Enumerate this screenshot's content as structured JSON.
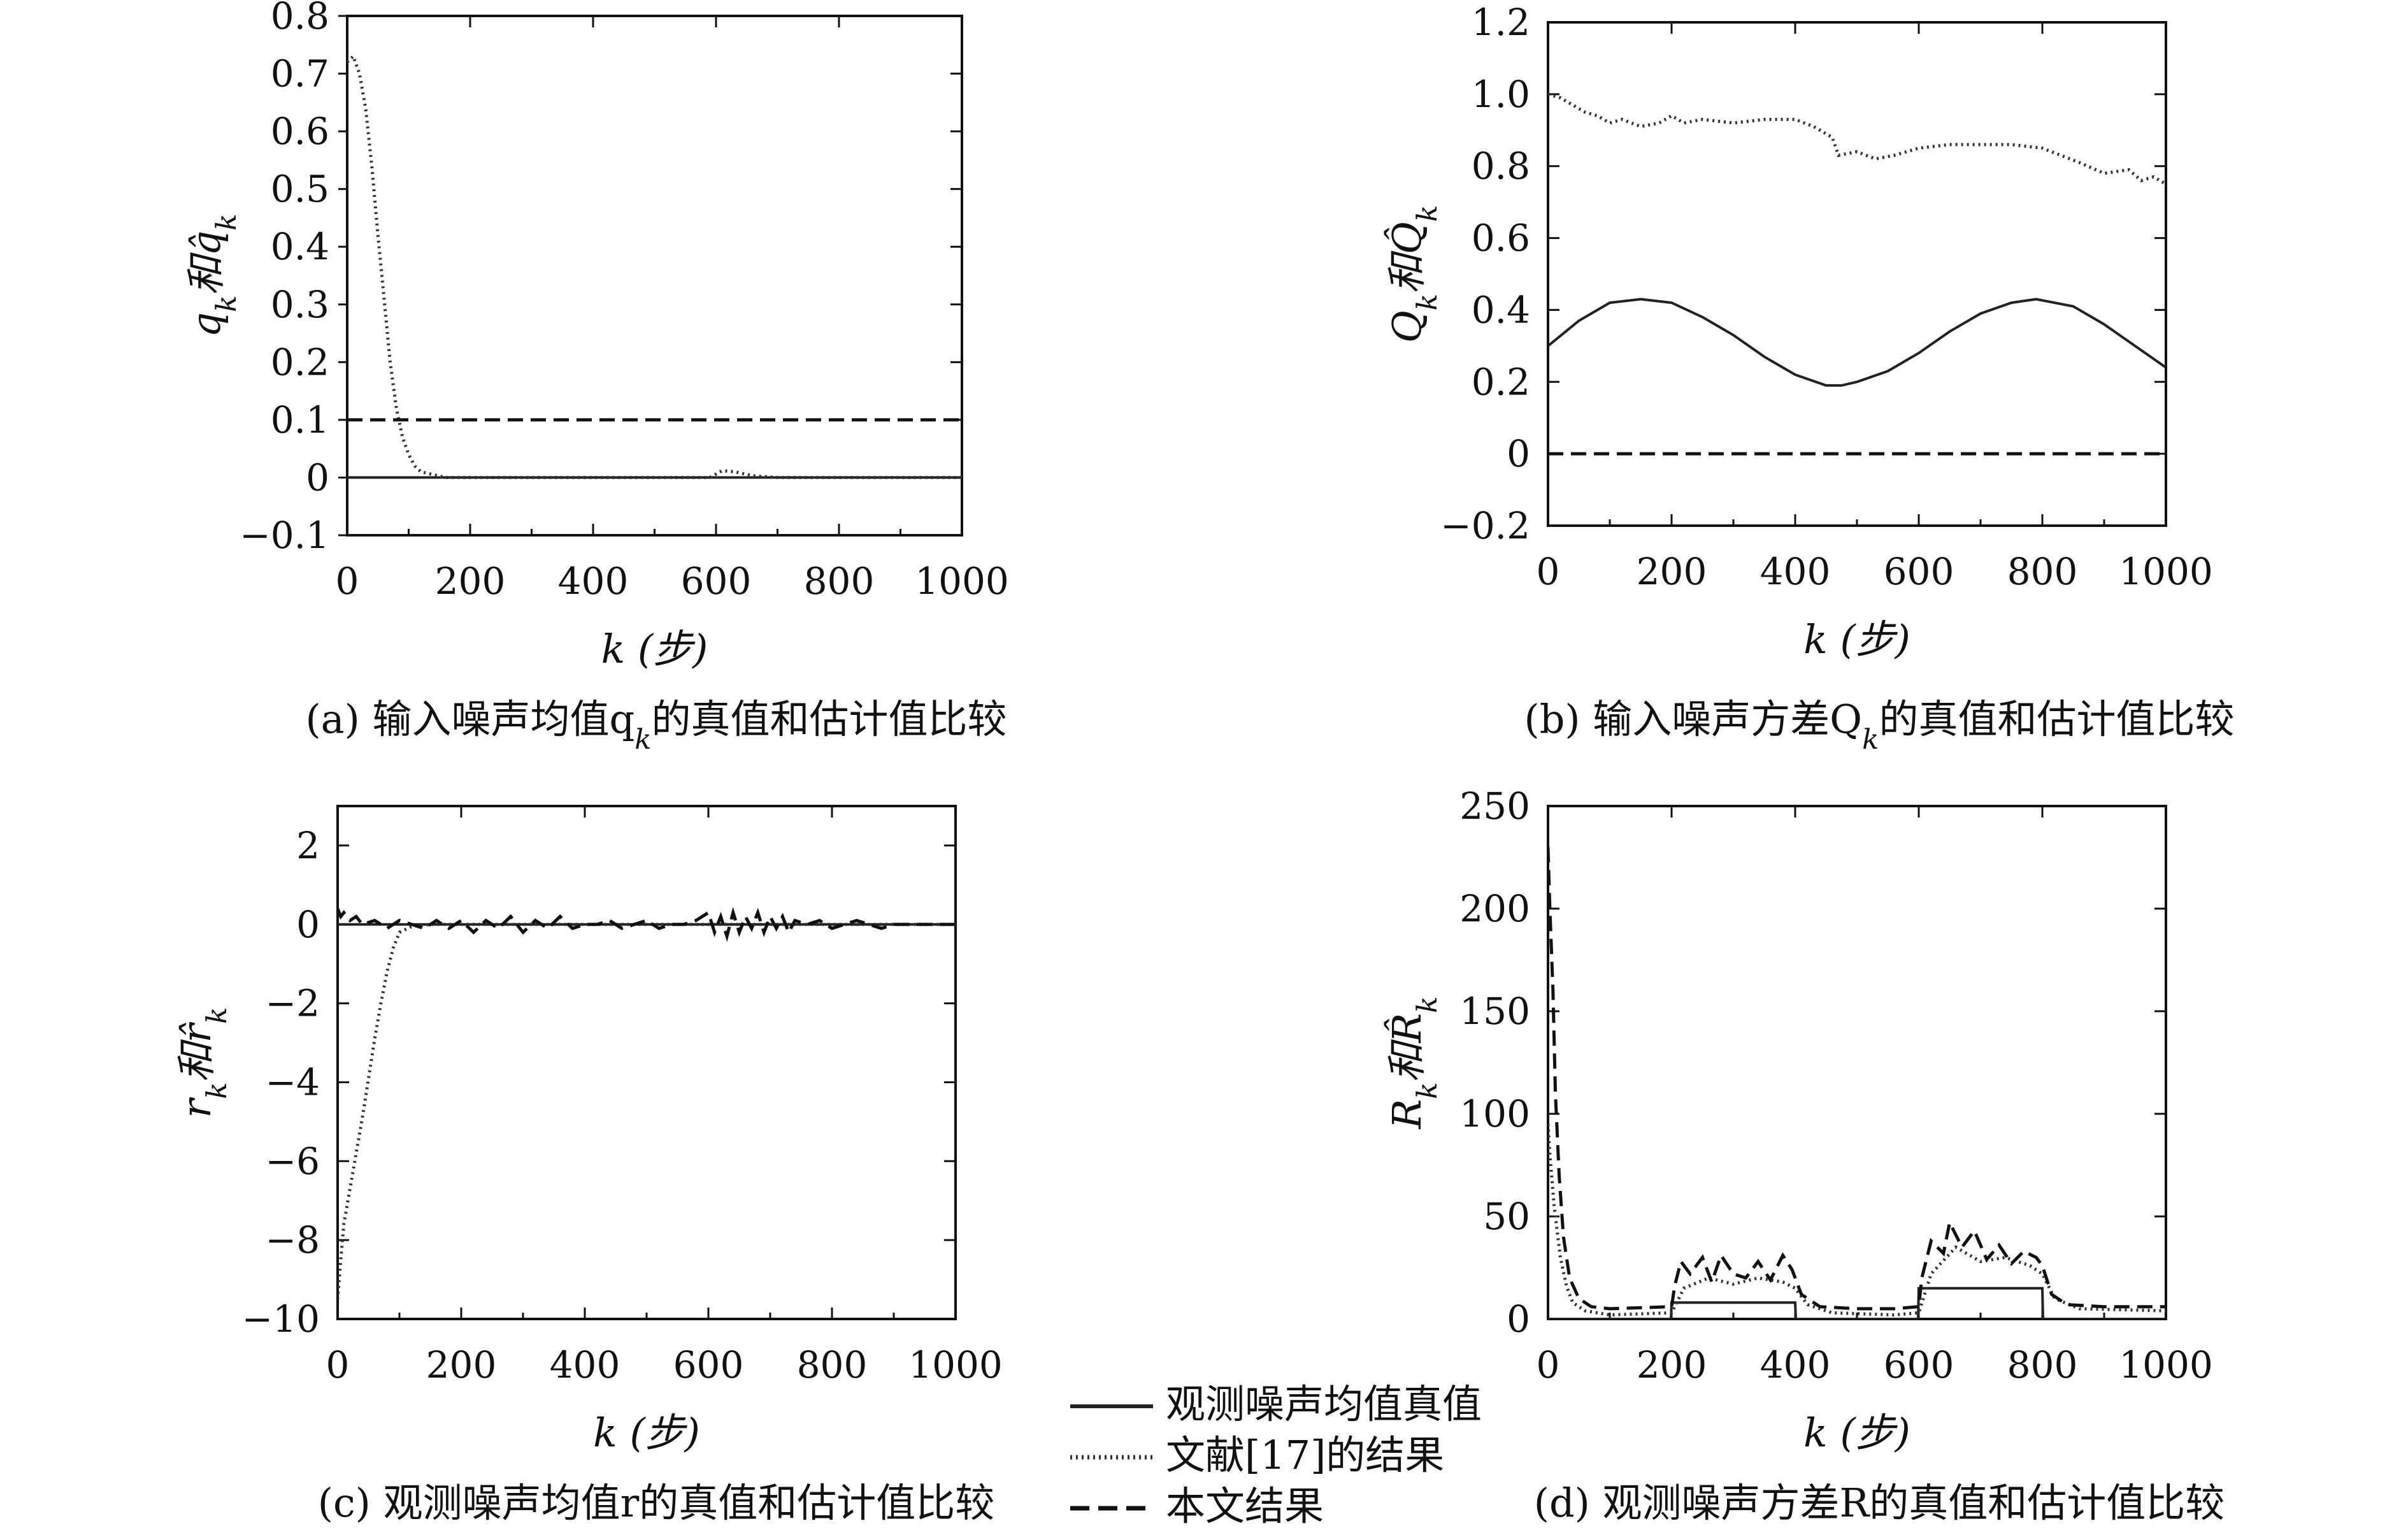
{
  "chart_data": [
    {
      "id": "a",
      "type": "line",
      "caption": "(a) 输入噪声均值q_k的真值和估计值比较",
      "xlabel": "k (步)",
      "ylabel": "q_k和q̂_k",
      "xlim": [
        0,
        1000
      ],
      "ylim": [
        -0.1,
        0.8
      ],
      "xticks": [
        "0",
        "200",
        "400",
        "600",
        "800",
        "1000"
      ],
      "yticks": [
        "−0.1",
        "0",
        "0.1",
        "0.2",
        "0.3",
        "0.4",
        "0.5",
        "0.6",
        "0.7",
        "0.8"
      ],
      "ytick_values": [
        -0.1,
        0,
        0.1,
        0.2,
        0.3,
        0.4,
        0.5,
        0.6,
        0.7,
        0.8
      ],
      "series": [
        {
          "style": "solid",
          "x": [
            0,
            1000
          ],
          "y": [
            0.0,
            0.0
          ]
        },
        {
          "style": "dotted",
          "x": [
            0,
            10,
            20,
            30,
            40,
            50,
            60,
            70,
            80,
            90,
            100,
            110,
            120,
            140,
            160,
            200,
            300,
            400,
            500,
            590,
            610,
            630,
            660,
            700,
            800,
            1000
          ],
          "y": [
            0.72,
            0.73,
            0.7,
            0.64,
            0.54,
            0.42,
            0.31,
            0.2,
            0.12,
            0.07,
            0.04,
            0.02,
            0.01,
            0.005,
            0.0,
            0.0,
            0.0,
            0.0,
            0.0,
            0.0,
            0.012,
            0.01,
            0.003,
            0.0,
            0.0,
            0.0
          ]
        },
        {
          "style": "dashed",
          "x": [
            0,
            1000
          ],
          "y": [
            0.1,
            0.1
          ]
        }
      ]
    },
    {
      "id": "b",
      "type": "line",
      "caption": "(b) 输入噪声方差Q_k的真值和估计值比较",
      "xlabel": "k (步)",
      "ylabel": "Q_k和Q̂_k",
      "xlim": [
        0,
        1000
      ],
      "ylim": [
        -0.2,
        1.2
      ],
      "xticks": [
        "0",
        "200",
        "400",
        "600",
        "800",
        "1000"
      ],
      "yticks": [
        "−0.2",
        "0",
        "0.2",
        "0.4",
        "0.6",
        "0.8",
        "1.0",
        "1.2"
      ],
      "ytick_values": [
        -0.2,
        0,
        0.2,
        0.4,
        0.6,
        0.8,
        1.0,
        1.2
      ],
      "series": [
        {
          "style": "solid",
          "x": [
            0,
            50,
            100,
            150,
            200,
            250,
            300,
            350,
            400,
            450,
            475,
            500,
            550,
            600,
            650,
            700,
            750,
            790,
            850,
            900,
            950,
            1000
          ],
          "y": [
            0.3,
            0.37,
            0.42,
            0.43,
            0.42,
            0.38,
            0.33,
            0.27,
            0.22,
            0.19,
            0.19,
            0.2,
            0.23,
            0.28,
            0.34,
            0.39,
            0.42,
            0.43,
            0.41,
            0.36,
            0.3,
            0.24
          ]
        },
        {
          "style": "dotted",
          "x": [
            0,
            20,
            40,
            60,
            80,
            100,
            120,
            150,
            180,
            200,
            220,
            250,
            300,
            350,
            400,
            430,
            460,
            470,
            500,
            530,
            560,
            600,
            650,
            700,
            750,
            800,
            830,
            860,
            900,
            940,
            960,
            980,
            1000
          ],
          "y": [
            1.0,
            0.99,
            0.97,
            0.95,
            0.94,
            0.92,
            0.93,
            0.91,
            0.92,
            0.94,
            0.92,
            0.93,
            0.92,
            0.93,
            0.93,
            0.91,
            0.88,
            0.83,
            0.84,
            0.82,
            0.83,
            0.85,
            0.86,
            0.86,
            0.86,
            0.85,
            0.83,
            0.81,
            0.78,
            0.79,
            0.76,
            0.77,
            0.75
          ]
        },
        {
          "style": "dashed",
          "x": [
            0,
            1000
          ],
          "y": [
            0.0,
            0.0
          ]
        }
      ]
    },
    {
      "id": "c",
      "type": "line",
      "caption": "(c) 观测噪声均值r的真值和估计值比较",
      "xlabel": "k (步)",
      "ylabel": "r_k和r̂_k",
      "xlim": [
        0,
        1000
      ],
      "ylim": [
        -10,
        3
      ],
      "xticks": [
        "0",
        "200",
        "400",
        "600",
        "800",
        "1000"
      ],
      "yticks": [
        "−10",
        "−8",
        "−6",
        "−4",
        "−2",
        "0",
        "2"
      ],
      "ytick_values": [
        -10,
        -8,
        -6,
        -4,
        -2,
        0,
        2
      ],
      "series": [
        {
          "style": "solid",
          "x": [
            0,
            1000
          ],
          "y": [
            0.0,
            0.0
          ]
        },
        {
          "style": "dotted",
          "x": [
            0,
            5,
            10,
            20,
            30,
            40,
            50,
            60,
            70,
            80,
            90,
            100,
            120,
            150,
            200,
            1000
          ],
          "y": [
            -9.5,
            -8.5,
            -7.6,
            -6.7,
            -5.8,
            -4.9,
            -3.9,
            -2.9,
            -2.0,
            -1.2,
            -0.6,
            -0.2,
            -0.05,
            0.0,
            0.0,
            0.0
          ]
        },
        {
          "style": "dashed",
          "x": [
            0,
            5,
            10,
            20,
            30,
            40,
            60,
            80,
            100,
            120,
            140,
            160,
            180,
            200,
            220,
            240,
            260,
            280,
            300,
            320,
            340,
            360,
            380,
            400,
            420,
            440,
            460,
            480,
            500,
            520,
            540,
            560,
            580,
            600,
            610,
            620,
            630,
            640,
            650,
            660,
            670,
            680,
            690,
            700,
            710,
            720,
            730,
            740,
            760,
            780,
            800,
            820,
            840,
            860,
            880,
            900,
            920,
            940,
            960,
            980,
            1000
          ],
          "y": [
            0.4,
            0.2,
            0.3,
            0.1,
            0.2,
            0.0,
            0.1,
            -0.1,
            0.1,
            0.0,
            -0.1,
            0.1,
            -0.1,
            0.1,
            -0.2,
            0.1,
            -0.1,
            0.2,
            -0.2,
            0.1,
            -0.1,
            0.2,
            -0.1,
            0.0,
            0.0,
            0.1,
            -0.1,
            0.0,
            0.1,
            -0.1,
            0.0,
            0.0,
            0.1,
            0.3,
            -0.2,
            0.2,
            -0.3,
            0.3,
            -0.2,
            0.2,
            -0.1,
            0.3,
            -0.2,
            0.2,
            -0.1,
            0.2,
            -0.2,
            0.1,
            0.0,
            0.1,
            -0.1,
            0.0,
            0.1,
            0.0,
            -0.1,
            0.0,
            0.0,
            0.0,
            0.0,
            0.0,
            0.0
          ]
        }
      ]
    },
    {
      "id": "d",
      "type": "line",
      "caption": "(d) 观测噪声方差R的真值和估计值比较",
      "xlabel": "k (步)",
      "ylabel": "R_k和R̂_k",
      "xlim": [
        0,
        1000
      ],
      "ylim": [
        0,
        250
      ],
      "xticks": [
        "0",
        "200",
        "400",
        "600",
        "800",
        "1000"
      ],
      "yticks": [
        "0",
        "50",
        "100",
        "150",
        "200",
        "250"
      ],
      "ytick_values": [
        0,
        50,
        100,
        150,
        200,
        250
      ],
      "series": [
        {
          "style": "solid",
          "x": [
            0,
            199,
            200,
            400,
            401,
            599,
            600,
            800,
            801,
            1000
          ],
          "y": [
            0,
            0,
            8,
            8,
            0,
            0,
            15,
            15,
            0,
            0
          ]
        },
        {
          "style": "dotted",
          "x": [
            0,
            3,
            10,
            20,
            30,
            40,
            60,
            100,
            200,
            220,
            260,
            300,
            340,
            380,
            400,
            420,
            460,
            560,
            600,
            620,
            660,
            700,
            740,
            780,
            800,
            820,
            860,
            1000
          ],
          "y": [
            95,
            80,
            55,
            30,
            16,
            8,
            4,
            2,
            3,
            15,
            20,
            17,
            20,
            18,
            15,
            7,
            3,
            2,
            3,
            22,
            35,
            28,
            30,
            26,
            22,
            10,
            5,
            4
          ]
        },
        {
          "style": "dashed",
          "x": [
            0,
            3,
            8,
            12,
            18,
            25,
            35,
            50,
            70,
            100,
            200,
            205,
            215,
            230,
            250,
            265,
            280,
            300,
            320,
            340,
            360,
            380,
            395,
            410,
            440,
            500,
            560,
            600,
            605,
            620,
            640,
            650,
            670,
            690,
            710,
            730,
            750,
            770,
            790,
            800,
            815,
            840,
            900,
            1000
          ],
          "y": [
            230,
            200,
            160,
            110,
            70,
            40,
            20,
            10,
            6,
            5,
            6,
            16,
            28,
            22,
            30,
            18,
            31,
            22,
            20,
            28,
            19,
            31,
            24,
            12,
            6,
            5,
            5,
            6,
            20,
            38,
            32,
            47,
            35,
            43,
            29,
            36,
            27,
            33,
            30,
            26,
            12,
            7,
            6,
            6
          ]
        }
      ]
    }
  ],
  "legend": {
    "entries": [
      {
        "style": "solid",
        "label": "观测噪声均值真值"
      },
      {
        "style": "dotted",
        "label": "文献[17]的结果"
      },
      {
        "style": "dashed",
        "label": "本文结果"
      }
    ]
  }
}
